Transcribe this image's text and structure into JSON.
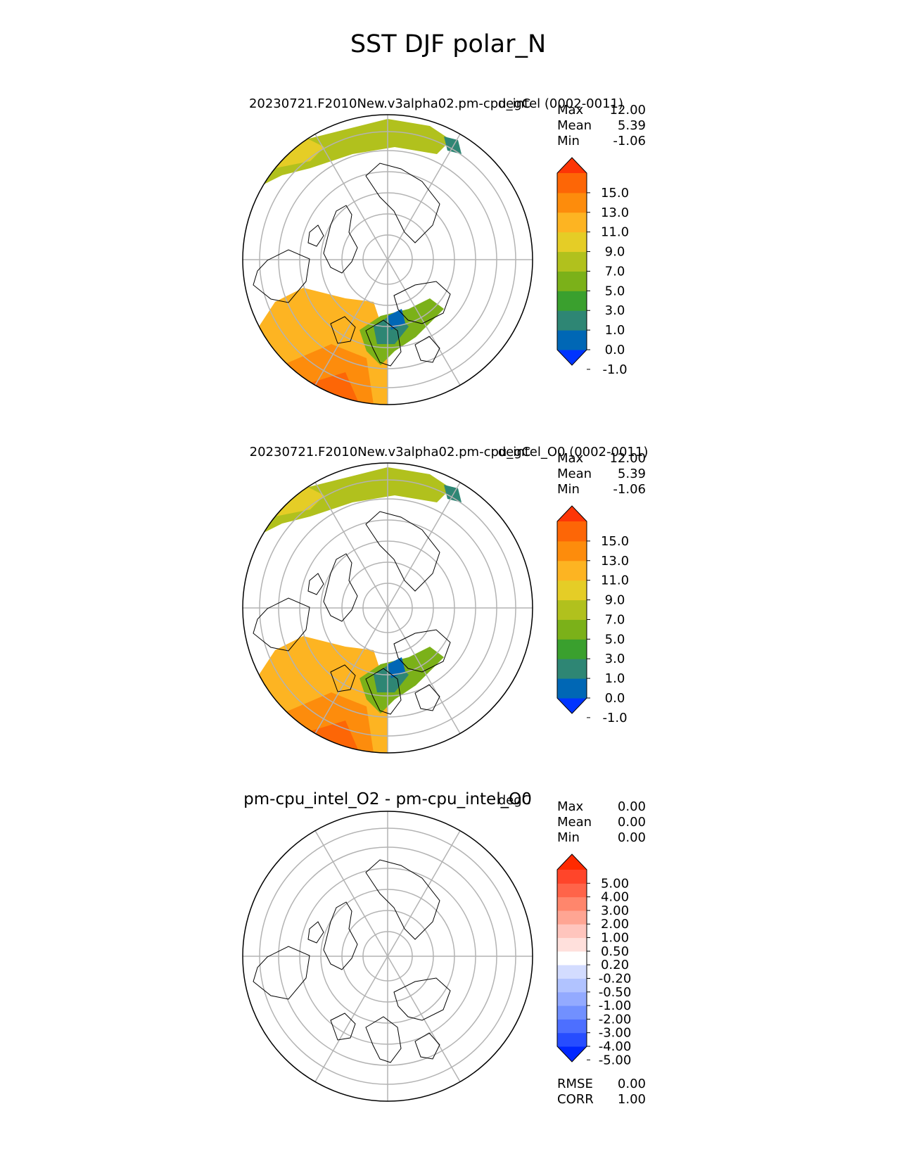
{
  "title": "SST DJF polar_N",
  "units": "degC",
  "panels": [
    {
      "id": "test",
      "title": "20230721.F2010New.v3alpha02.pm-cpu_intel (0002-0011)",
      "units": "degC",
      "stats": [
        {
          "label": "Max",
          "value": "12.00"
        },
        {
          "label": "Mean",
          "value": "5.39"
        },
        {
          "label": "Min",
          "value": "-1.06"
        }
      ],
      "colorbar": {
        "ticks": [
          "15.0",
          "13.0",
          "11.0",
          "9.0",
          "7.0",
          "5.0",
          "3.0",
          "1.0",
          "0.0",
          "-1.0"
        ],
        "colors": [
          "#0034ff",
          "#0067b5",
          "#2e8674",
          "#3aa02e",
          "#7bb119",
          "#b1c11d",
          "#e5cd26",
          "#fdb422",
          "#fd8c0c",
          "#fd6606",
          "#fd3506"
        ],
        "extend": "both"
      }
    },
    {
      "id": "reference",
      "title": "20230721.F2010New.v3alpha02.pm-cpu_intel_O0 (0002-0011)",
      "units": "degC",
      "stats": [
        {
          "label": "Max",
          "value": "12.00"
        },
        {
          "label": "Mean",
          "value": "5.39"
        },
        {
          "label": "Min",
          "value": "-1.06"
        }
      ],
      "colorbar": {
        "ticks": [
          "15.0",
          "13.0",
          "11.0",
          "9.0",
          "7.0",
          "5.0",
          "3.0",
          "1.0",
          "0.0",
          "-1.0"
        ],
        "colors": [
          "#0034ff",
          "#0067b5",
          "#2e8674",
          "#3aa02e",
          "#7bb119",
          "#b1c11d",
          "#e5cd26",
          "#fdb422",
          "#fd8c0c",
          "#fd6606",
          "#fd3506"
        ],
        "extend": "both"
      }
    },
    {
      "id": "diff",
      "title": "pm-cpu_intel_O2 - pm-cpu_intel_O0",
      "units": "degC",
      "stats": [
        {
          "label": "Max",
          "value": "0.00"
        },
        {
          "label": "Mean",
          "value": "0.00"
        },
        {
          "label": "Min",
          "value": "0.00"
        }
      ],
      "colorbar": {
        "ticks": [
          "5.00",
          "4.00",
          "3.00",
          "2.00",
          "1.00",
          "0.50",
          "0.20",
          "-0.20",
          "-0.50",
          "-1.00",
          "-2.00",
          "-3.00",
          "-4.00",
          "-5.00"
        ],
        "colors": [
          "#0027ff",
          "#274dff",
          "#4d6fff",
          "#7190ff",
          "#93aaff",
          "#b1c3ff",
          "#d3dcff",
          "#ffffff",
          "#ffe0dc",
          "#ffc5bd",
          "#ffa593",
          "#ff866c",
          "#ff6449",
          "#ff452a",
          "#ff2a00"
        ],
        "extend": "both"
      },
      "extra_stats": [
        {
          "label": "RMSE",
          "value": "0.00"
        },
        {
          "label": "CORR",
          "value": "1.00"
        }
      ]
    }
  ]
}
